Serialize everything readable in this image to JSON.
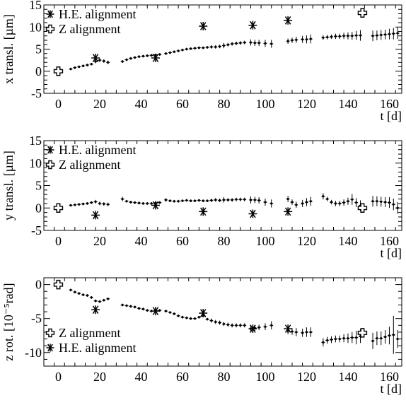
{
  "chart_data": [
    {
      "type": "scatter",
      "ylabel": "x transl. [µm]",
      "xlabel": "t [d]",
      "xlim": [
        -7,
        166
      ],
      "ylim": [
        -5,
        15
      ],
      "xticks": [
        0,
        20,
        40,
        60,
        80,
        100,
        120,
        140,
        160
      ],
      "yticks": [
        -5,
        0,
        5,
        10,
        15
      ],
      "legend_placement": "top-left",
      "legend": [
        "H.E. alignment",
        "Z alignment"
      ],
      "series": [
        {
          "name": "data",
          "marker": "dot",
          "x": [
            6,
            8,
            10,
            12,
            14,
            16,
            18,
            20,
            22,
            24,
            31,
            33,
            35,
            37,
            39,
            41,
            43,
            45,
            47,
            49,
            52,
            54,
            56,
            58,
            60,
            62,
            64,
            66,
            68,
            70,
            72,
            74,
            76,
            78,
            80,
            82,
            84,
            86,
            88,
            90,
            93,
            95,
            97,
            100,
            103,
            111,
            113,
            115,
            118,
            120,
            122,
            128,
            130,
            132,
            134,
            136,
            138,
            140,
            142,
            144,
            146,
            152,
            154,
            156,
            158,
            160,
            162,
            164
          ],
          "y": [
            0.5,
            0.8,
            1.0,
            1.2,
            1.4,
            1.6,
            2.2,
            2.5,
            2.3,
            2.0,
            2.2,
            2.6,
            2.9,
            3.1,
            3.3,
            3.4,
            3.5,
            3.6,
            3.7,
            3.8,
            4.0,
            4.2,
            4.4,
            4.6,
            4.8,
            5.0,
            5.1,
            5.2,
            5.3,
            5.3,
            5.4,
            5.5,
            5.5,
            5.6,
            5.8,
            6.0,
            6.2,
            6.3,
            6.4,
            6.5,
            6.5,
            6.4,
            6.4,
            6.3,
            6.2,
            6.8,
            7.0,
            7.1,
            7.2,
            7.2,
            7.3,
            7.6,
            7.7,
            7.8,
            7.9,
            7.9,
            8.0,
            8.0,
            8.0,
            8.1,
            8.1,
            8.0,
            8.1,
            8.2,
            8.3,
            8.4,
            8.5,
            8.6
          ],
          "yerr": [
            0.3,
            0.3,
            0.3,
            0.3,
            0.3,
            0.3,
            0.4,
            0.4,
            0.4,
            0.4,
            0.3,
            0.3,
            0.3,
            0.3,
            0.3,
            0.3,
            0.3,
            0.3,
            0.3,
            0.3,
            0.3,
            0.3,
            0.3,
            0.3,
            0.3,
            0.3,
            0.3,
            0.3,
            0.3,
            0.3,
            0.3,
            0.4,
            0.4,
            0.4,
            0.6,
            0.4,
            0.4,
            0.4,
            0.4,
            0.4,
            0.7,
            0.7,
            0.7,
            0.8,
            0.9,
            0.6,
            0.6,
            0.7,
            0.8,
            0.9,
            1.0,
            0.5,
            0.5,
            0.5,
            0.6,
            0.6,
            0.7,
            0.8,
            0.9,
            1.0,
            1.2,
            1.2,
            1.1,
            1.1,
            1.1,
            1.2,
            1.3,
            1.3
          ]
        },
        {
          "name": "H.E. alignment",
          "marker": "star",
          "x": [
            18,
            47,
            70,
            94,
            111
          ],
          "y": [
            3.0,
            3.0,
            10.2,
            10.4,
            11.5
          ]
        },
        {
          "name": "Z alignment",
          "marker": "cross",
          "x": [
            0,
            147
          ],
          "y": [
            0,
            13.2
          ]
        }
      ]
    },
    {
      "type": "scatter",
      "ylabel": "y transl. [µm]",
      "xlabel": "t [d]",
      "xlim": [
        -7,
        166
      ],
      "ylim": [
        -5,
        15
      ],
      "xticks": [
        0,
        20,
        40,
        60,
        80,
        100,
        120,
        140,
        160
      ],
      "yticks": [
        -5,
        0,
        5,
        10,
        15
      ],
      "legend_placement": "top-left",
      "legend": [
        "H.E. alignment",
        "Z alignment"
      ],
      "series": [
        {
          "name": "data",
          "marker": "dot",
          "x": [
            6,
            8,
            10,
            12,
            14,
            16,
            18,
            20,
            22,
            24,
            31,
            33,
            35,
            37,
            39,
            41,
            43,
            45,
            47,
            49,
            52,
            54,
            56,
            58,
            60,
            62,
            64,
            66,
            68,
            70,
            72,
            74,
            76,
            78,
            80,
            82,
            84,
            86,
            88,
            90,
            93,
            95,
            97,
            100,
            103,
            111,
            113,
            115,
            118,
            120,
            122,
            128,
            130,
            132,
            134,
            136,
            138,
            140,
            142,
            144,
            146,
            152,
            154,
            156,
            158,
            160,
            162,
            164
          ],
          "y": [
            0.6,
            0.7,
            0.8,
            0.9,
            1.0,
            1.2,
            1.4,
            1.0,
            0.9,
            0.8,
            2.0,
            1.5,
            1.3,
            1.2,
            1.1,
            1.0,
            1.0,
            1.0,
            1.1,
            1.2,
            1.8,
            1.6,
            1.5,
            1.5,
            1.6,
            1.7,
            1.6,
            1.6,
            1.7,
            1.6,
            1.6,
            1.7,
            1.8,
            1.7,
            1.8,
            1.8,
            1.8,
            1.9,
            1.9,
            1.9,
            1.8,
            1.8,
            1.7,
            1.3,
            1.0,
            2.0,
            1.3,
            0.7,
            1.0,
            1.3,
            1.5,
            2.6,
            2.0,
            1.3,
            1.0,
            1.0,
            1.2,
            1.5,
            1.9,
            1.2,
            0.5,
            1.5,
            1.5,
            1.4,
            1.3,
            1.2,
            0.8,
            0.0
          ],
          "yerr": [
            0.3,
            0.3,
            0.3,
            0.3,
            0.3,
            0.3,
            0.4,
            0.4,
            0.4,
            0.4,
            0.5,
            0.3,
            0.3,
            0.3,
            0.3,
            0.3,
            0.3,
            0.3,
            0.3,
            0.3,
            0.4,
            0.3,
            0.3,
            0.3,
            0.3,
            0.3,
            0.3,
            0.3,
            0.3,
            0.3,
            0.3,
            0.4,
            0.4,
            0.4,
            0.6,
            0.4,
            0.4,
            0.4,
            0.4,
            0.4,
            0.8,
            0.7,
            0.7,
            0.8,
            0.9,
            0.7,
            0.6,
            0.7,
            0.8,
            0.9,
            1.0,
            0.7,
            0.5,
            0.5,
            0.6,
            0.6,
            0.7,
            0.8,
            1.2,
            1.0,
            1.2,
            1.2,
            1.1,
            1.1,
            1.1,
            1.2,
            1.3,
            1.3
          ]
        },
        {
          "name": "H.E. alignment",
          "marker": "star",
          "x": [
            18,
            47,
            70,
            94,
            111
          ],
          "y": [
            -1.6,
            0.6,
            -0.8,
            -1.3,
            -0.8
          ]
        },
        {
          "name": "Z alignment",
          "marker": "cross",
          "x": [
            0,
            147
          ],
          "y": [
            0,
            0
          ]
        }
      ]
    },
    {
      "type": "scatter",
      "ylabel": "z rot. [10⁻⁵rad]",
      "xlabel": "t [d]",
      "xlim": [
        -7,
        166
      ],
      "ylim": [
        -12,
        1
      ],
      "xticks": [
        0,
        20,
        40,
        60,
        80,
        100,
        120,
        140,
        160
      ],
      "yticks": [
        -10,
        -5,
        0
      ],
      "legend_placement": "bottom-left",
      "legend": [
        "Z alignment",
        "H.E. alignment"
      ],
      "series": [
        {
          "name": "data",
          "marker": "dot",
          "x": [
            6,
            8,
            10,
            12,
            14,
            16,
            18,
            20,
            22,
            24,
            31,
            33,
            35,
            37,
            39,
            41,
            43,
            45,
            47,
            49,
            52,
            54,
            56,
            58,
            60,
            62,
            64,
            66,
            68,
            70,
            72,
            74,
            76,
            78,
            80,
            82,
            84,
            86,
            88,
            90,
            93,
            95,
            97,
            100,
            103,
            111,
            113,
            115,
            118,
            120,
            122,
            128,
            130,
            132,
            134,
            136,
            138,
            140,
            142,
            144,
            146,
            152,
            154,
            156,
            158,
            160,
            162,
            164
          ],
          "y": [
            -0.8,
            -1.1,
            -1.3,
            -1.5,
            -1.6,
            -1.9,
            -2.4,
            -2.5,
            -2.3,
            -2.1,
            -3.0,
            -3.1,
            -3.2,
            -3.3,
            -3.5,
            -3.6,
            -3.8,
            -3.9,
            -3.8,
            -3.8,
            -3.9,
            -4.1,
            -4.3,
            -4.6,
            -4.8,
            -4.9,
            -5.0,
            -5.0,
            -4.8,
            -4.6,
            -5.1,
            -5.3,
            -5.5,
            -5.6,
            -5.8,
            -5.9,
            -6.0,
            -6.0,
            -6.0,
            -6.0,
            -6.5,
            -6.4,
            -6.3,
            -6.2,
            -6.0,
            -6.8,
            -6.9,
            -7.0,
            -7.1,
            -7.0,
            -7.0,
            -8.5,
            -8.2,
            -8.1,
            -8.0,
            -8.0,
            -7.9,
            -7.9,
            -7.8,
            -7.8,
            -7.6,
            -8.3,
            -7.9,
            -7.9,
            -7.7,
            -7.5,
            -7.4,
            -8.0
          ],
          "yerr": [
            0.2,
            0.2,
            0.2,
            0.2,
            0.2,
            0.2,
            0.2,
            0.2,
            0.2,
            0.2,
            0.2,
            0.2,
            0.2,
            0.2,
            0.2,
            0.2,
            0.2,
            0.2,
            0.2,
            0.2,
            0.2,
            0.2,
            0.2,
            0.2,
            0.2,
            0.2,
            0.2,
            0.2,
            0.2,
            0.2,
            0.2,
            0.3,
            0.3,
            0.3,
            0.3,
            0.3,
            0.3,
            0.3,
            0.3,
            0.3,
            0.4,
            0.4,
            0.4,
            0.5,
            0.6,
            0.5,
            0.5,
            0.6,
            0.6,
            0.7,
            0.7,
            0.6,
            0.5,
            0.5,
            0.5,
            0.5,
            0.6,
            0.7,
            0.8,
            1.0,
            1.0,
            1.2,
            1.0,
            1.0,
            1.0,
            1.3,
            2.8,
            1.3
          ]
        },
        {
          "name": "H.E. alignment",
          "marker": "star",
          "x": [
            18,
            47,
            70,
            94,
            111
          ],
          "y": [
            -3.7,
            -3.9,
            -4.2,
            -6.5,
            -6.5
          ]
        },
        {
          "name": "Z alignment",
          "marker": "cross",
          "x": [
            0,
            147
          ],
          "y": [
            0,
            -7.1
          ]
        }
      ]
    }
  ]
}
